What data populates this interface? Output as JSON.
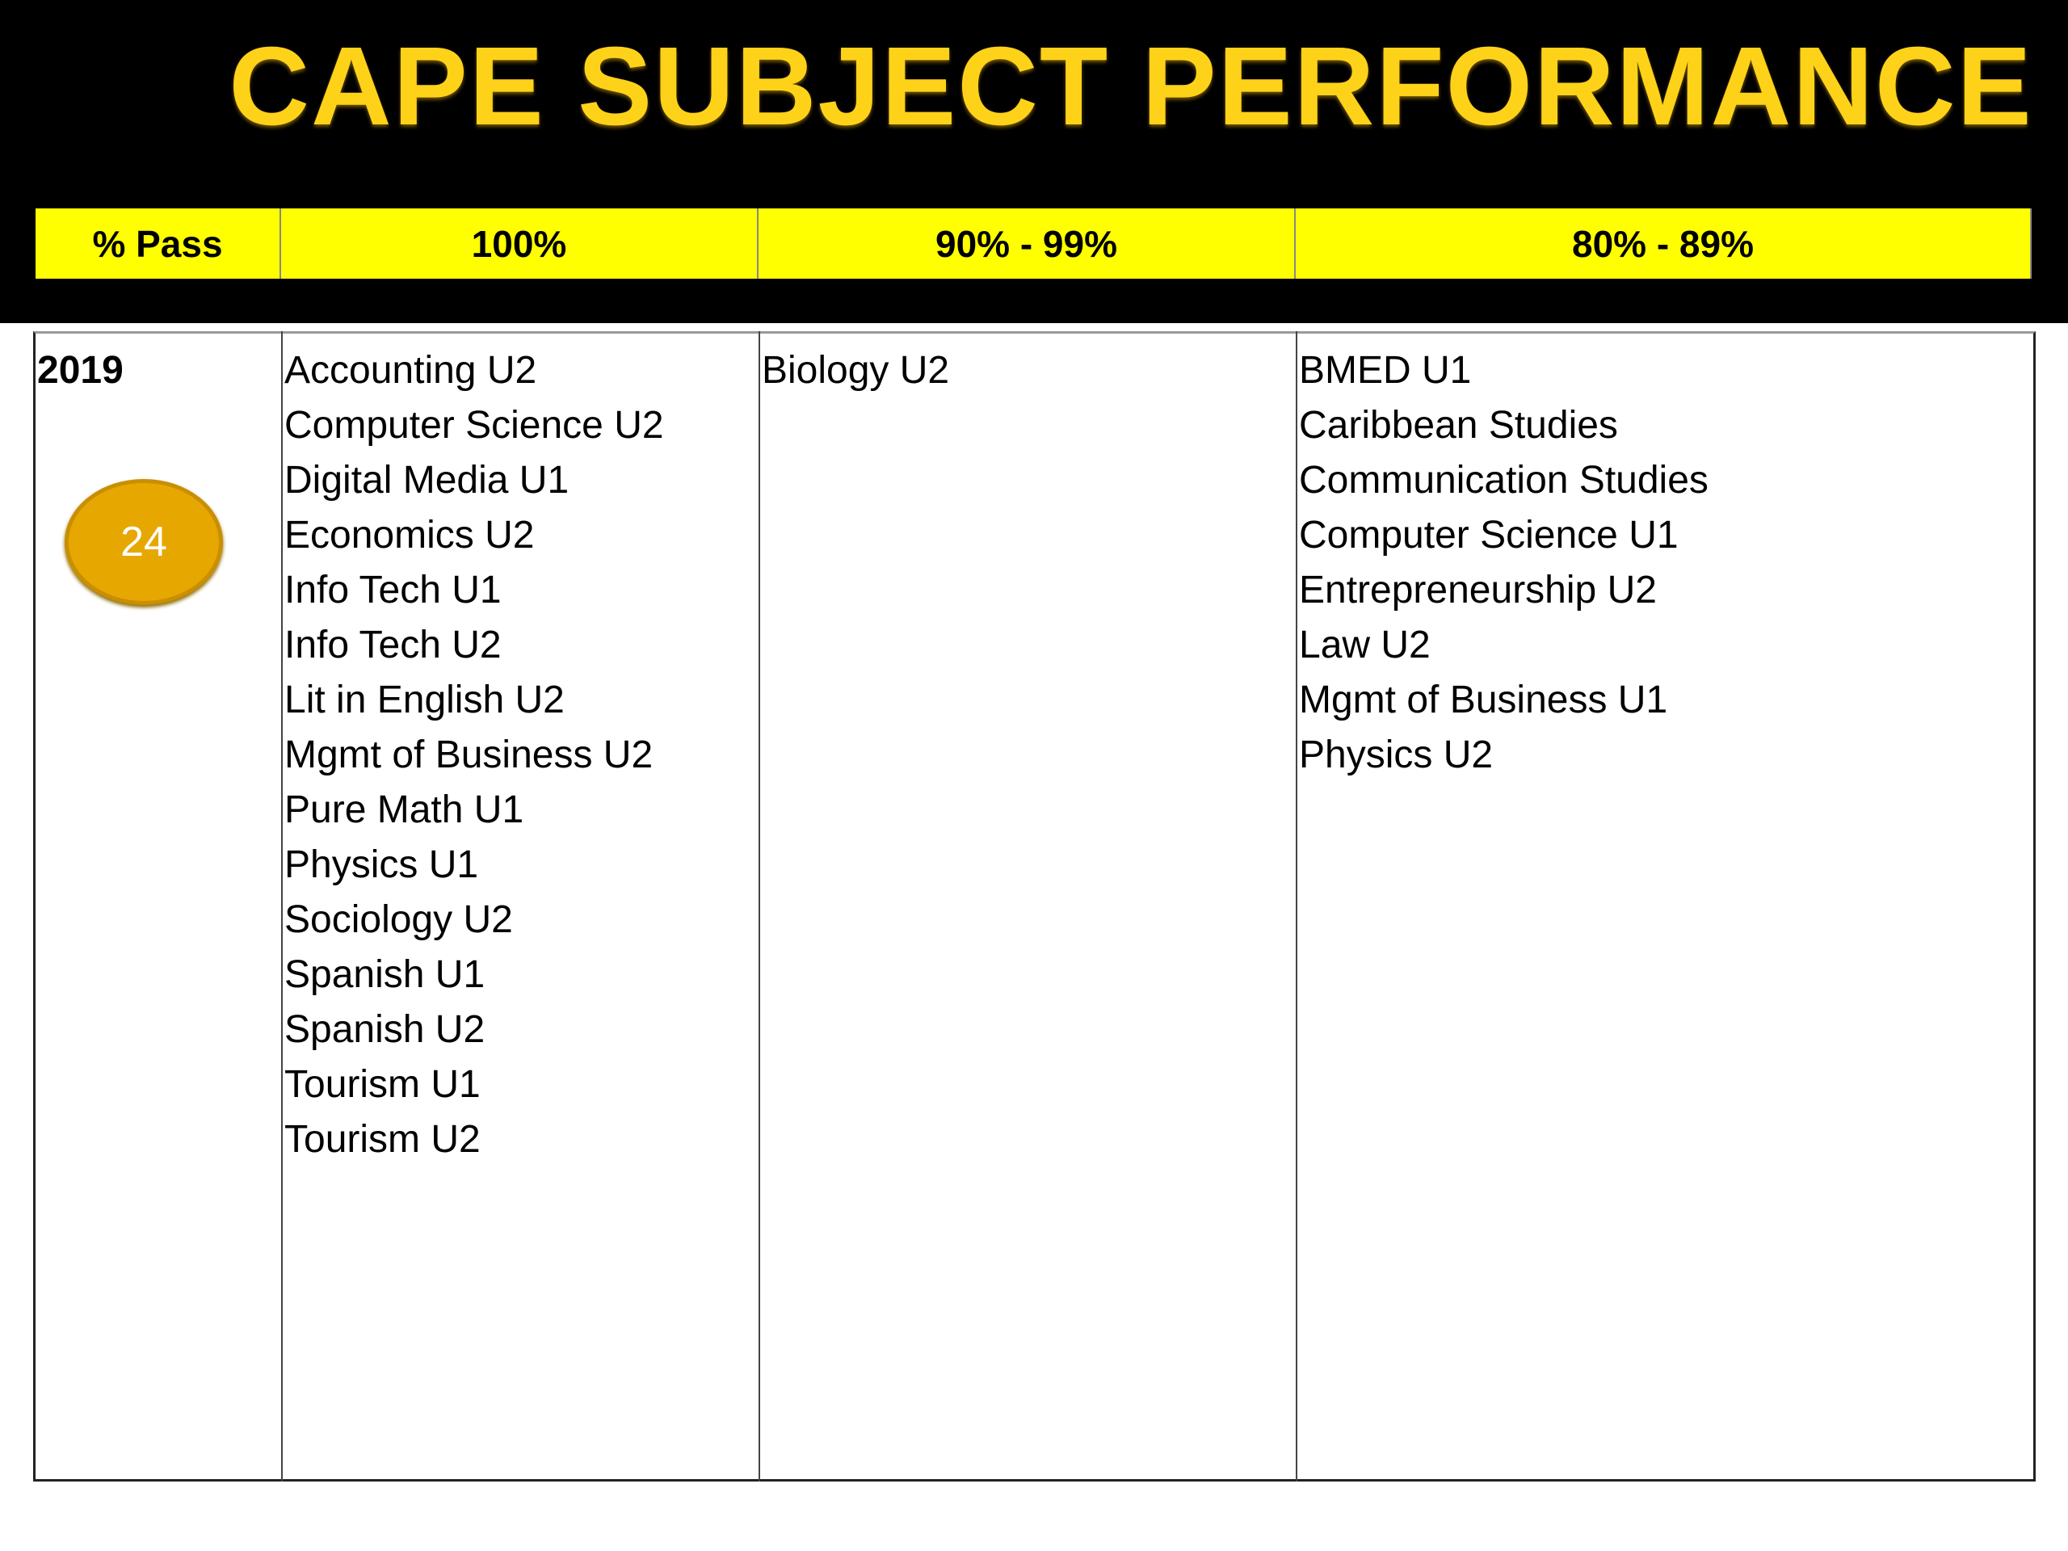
{
  "header": {
    "title": "CAPE SUBJECT PERFORMANCE"
  },
  "table": {
    "columns": [
      "% Pass",
      "100%",
      "90% - 99%",
      "80% - 89%"
    ],
    "rows": [
      {
        "label": "2019",
        "cells": [
          [
            "Accounting U2",
            "Computer Science U2",
            "Digital Media U1",
            "Economics U2",
            "Info Tech U1",
            "Info Tech U2",
            "Lit in English U2",
            "Mgmt of Business U2",
            "Pure Math U1",
            "Physics U1",
            "Sociology U2",
            "Spanish U1",
            "Spanish U2",
            "Tourism U1",
            "Tourism U2"
          ],
          [
            "Biology U2"
          ],
          [
            "BMED U1",
            "Caribbean Studies",
            "Communication Studies",
            "Computer Science U1",
            "Entrepreneurship U2",
            "Law U2",
            "Mgmt of Business U1",
            "Physics U2"
          ]
        ]
      }
    ]
  },
  "badge": "24"
}
